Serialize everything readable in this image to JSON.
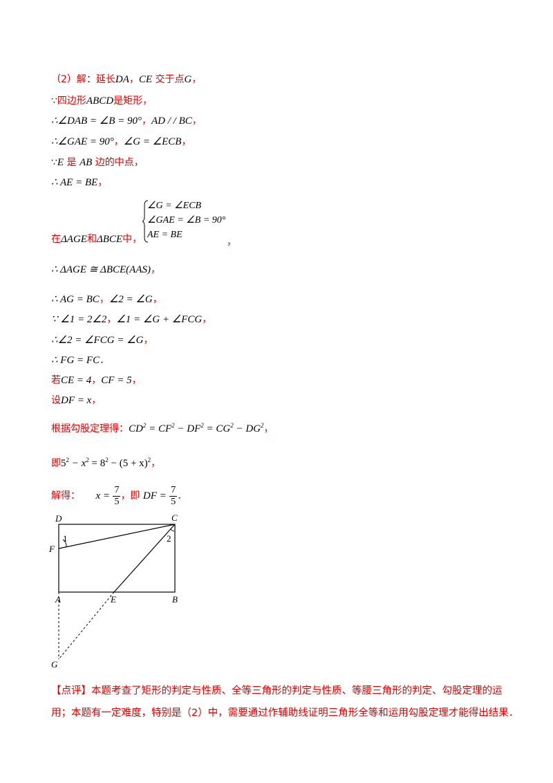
{
  "solution": {
    "l01": {
      "a": "（2）解：延长",
      "b": "DA",
      "c": "，",
      "d": "CE",
      "e": " 交于点",
      "f": "G",
      "g": "，"
    },
    "l02": {
      "a": "∵",
      "b": "四边形",
      "c": "ABCD",
      "d": "是矩形，"
    },
    "l03": {
      "a": "∴∠DAB = ∠B = 90°",
      "b": "，",
      "c": "AD / / BC",
      "d": "，"
    },
    "l04": {
      "a": "∴∠GAE = 90°",
      "b": "，",
      "c": "∠G = ∠ECB",
      "d": "，"
    },
    "l05": {
      "a": "∵",
      "b": "E",
      "c": " 是 ",
      "d": "AB",
      "e": " 边的中点，"
    },
    "l06": {
      "a": "∴ AE = BE",
      "b": "，"
    },
    "l07": {
      "a": "在",
      "b": "ΔAGE",
      "c": "和",
      "d": "ΔBCE",
      "e": "中，",
      "f": "，"
    },
    "system": [
      "∠G = ∠ECB",
      "∠GAE = ∠B = 90°",
      "AE = BE"
    ],
    "l08": {
      "a": "∴ ΔAGE ≅ ΔBCE(AAS)",
      "b": "，"
    },
    "l09": {
      "a": "∴ AG = BC",
      "b": "，",
      "c": "∠2 = ∠G",
      "d": "，"
    },
    "l10": {
      "a": "∵ ∠1 = 2∠2",
      "b": "，",
      "c": "∠1 = ∠G + ∠FCG",
      "d": "，"
    },
    "l11": {
      "a": "∴∠2 = ∠FCG = ∠G",
      "b": "，"
    },
    "l12": {
      "a": "∴ FG = FC",
      "b": "．"
    },
    "l13": {
      "a": "若",
      "b": "CE = 4",
      "c": "，",
      "d": "CF = 5",
      "e": "，"
    },
    "l14": {
      "a": "设",
      "b": "DF = x",
      "c": "，"
    },
    "l15": {
      "a": "根据勾股定理得：",
      "b1": "CD",
      "b2": " = CF",
      "b3": " − DF",
      "b4": " = CG",
      "b5": " − DG",
      "sq": "2",
      "c": "，"
    },
    "l16": {
      "a": "即",
      "b1": "5",
      "b2": " − x",
      "b3": " = 8",
      "b4": " − (5 + x)",
      "sq": "2",
      "c": "，"
    },
    "l17": {
      "a": "解得：",
      "b": "x =",
      "num": "7",
      "den": "5",
      "c": "，即",
      "d": "DF =",
      "e": "．"
    }
  },
  "figure": {
    "labels": {
      "D": "D",
      "C": "C",
      "F": "F",
      "one": "1",
      "two": "2",
      "A": "A",
      "E": "E",
      "B": "B",
      "G": "G"
    }
  },
  "comment": {
    "text": "【点评】本题考查了矩形的判定与性质、全等三角形的判定与性质、等腰三角形的判定、勾股定理的运用；本题有一定难度，特别是（2）中，需要通过作辅助线证明三角形全等和运用勾股定理才能得出结果．"
  }
}
